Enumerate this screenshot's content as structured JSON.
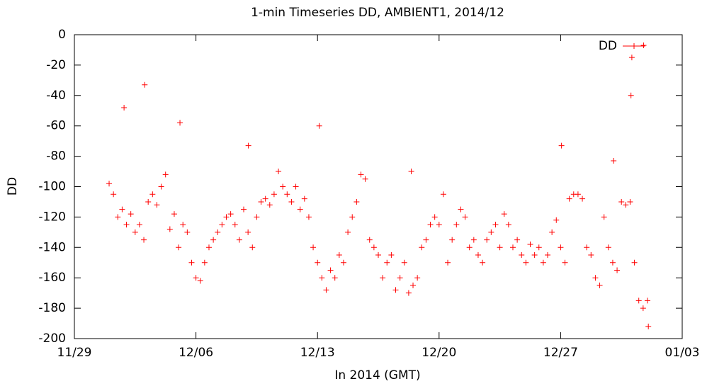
{
  "chart_data": {
    "type": "scatter",
    "title": "1-min Timeseries DD, AMBIENT1, 2014/12",
    "x_label": "In 2014 (GMT)",
    "y_label": "DD",
    "xlim": [
      0,
      35
    ],
    "xticks": [
      {
        "value": 0,
        "label": "11/29"
      },
      {
        "value": 7,
        "label": "12/06"
      },
      {
        "value": 14,
        "label": "12/13"
      },
      {
        "value": 21,
        "label": "12/20"
      },
      {
        "value": 28,
        "label": "12/27"
      },
      {
        "value": 35,
        "label": "01/03"
      }
    ],
    "ylim": [
      -200,
      0
    ],
    "yticks": [
      -200,
      -180,
      -160,
      -140,
      -120,
      -100,
      -80,
      -60,
      -40,
      -20,
      0
    ],
    "legend": "top-right",
    "grid": false,
    "x": [
      2.0,
      2.25,
      2.5,
      2.75,
      2.86,
      3.0,
      3.25,
      3.5,
      3.75,
      4.0,
      4.05,
      4.25,
      4.5,
      4.75,
      5.0,
      5.25,
      5.5,
      5.75,
      6.0,
      6.08,
      6.25,
      6.5,
      6.75,
      7.0,
      7.25,
      7.5,
      7.75,
      8.0,
      8.25,
      8.5,
      8.75,
      9.0,
      9.25,
      9.5,
      9.75,
      10.0,
      10.02,
      10.25,
      10.5,
      10.75,
      11.0,
      11.25,
      11.5,
      11.75,
      12.0,
      12.25,
      12.5,
      12.75,
      13.0,
      13.25,
      13.5,
      13.75,
      14.0,
      14.1,
      14.25,
      14.5,
      14.75,
      15.0,
      15.25,
      15.5,
      15.75,
      16.0,
      16.25,
      16.5,
      16.75,
      17.0,
      17.25,
      17.5,
      17.75,
      18.0,
      18.25,
      18.5,
      18.75,
      19.0,
      19.25,
      19.4,
      19.5,
      19.75,
      20.0,
      20.25,
      20.5,
      20.75,
      21.0,
      21.25,
      21.5,
      21.75,
      22.0,
      22.25,
      22.5,
      22.75,
      23.0,
      23.25,
      23.5,
      23.75,
      24.0,
      24.25,
      24.5,
      24.75,
      25.0,
      25.25,
      25.5,
      25.75,
      26.0,
      26.25,
      26.5,
      26.75,
      27.0,
      27.25,
      27.5,
      27.75,
      28.0,
      28.05,
      28.25,
      28.5,
      28.75,
      29.0,
      29.25,
      29.5,
      29.75,
      30.0,
      30.25,
      30.5,
      30.75,
      31.0,
      31.05,
      31.25,
      31.5,
      31.75,
      32.0,
      32.05,
      32.1,
      32.25,
      32.5,
      32.75,
      32.78,
      33.0,
      33.05
    ],
    "series": [
      {
        "name": "DD",
        "color": "#ff0000",
        "values": [
          -98,
          -105,
          -120,
          -115,
          -48,
          -125,
          -118,
          -130,
          -125,
          -135,
          -33,
          -110,
          -105,
          -112,
          -100,
          -92,
          -128,
          -118,
          -140,
          -58,
          -125,
          -130,
          -150,
          -160,
          -162,
          -150,
          -140,
          -135,
          -130,
          -125,
          -120,
          -118,
          -125,
          -135,
          -115,
          -130,
          -73,
          -140,
          -120,
          -110,
          -108,
          -112,
          -105,
          -90,
          -100,
          -105,
          -110,
          -100,
          -115,
          -108,
          -120,
          -140,
          -150,
          -60,
          -160,
          -168,
          -155,
          -160,
          -145,
          -150,
          -130,
          -120,
          -110,
          -92,
          -95,
          -135,
          -140,
          -145,
          -160,
          -150,
          -145,
          -168,
          -160,
          -150,
          -170,
          -90,
          -165,
          -160,
          -140,
          -135,
          -125,
          -120,
          -125,
          -105,
          -150,
          -135,
          -125,
          -115,
          -120,
          -140,
          -135,
          -145,
          -150,
          -135,
          -130,
          -125,
          -140,
          -118,
          -125,
          -140,
          -135,
          -145,
          -150,
          -138,
          -145,
          -140,
          -150,
          -145,
          -130,
          -122,
          -140,
          -73,
          -150,
          -108,
          -105,
          -105,
          -108,
          -140,
          -145,
          -160,
          -165,
          -120,
          -140,
          -150,
          -83,
          -155,
          -110,
          -112,
          -110,
          -40,
          -15,
          -150,
          -175,
          -180,
          -7,
          -175,
          -192
        ]
      }
    ]
  }
}
